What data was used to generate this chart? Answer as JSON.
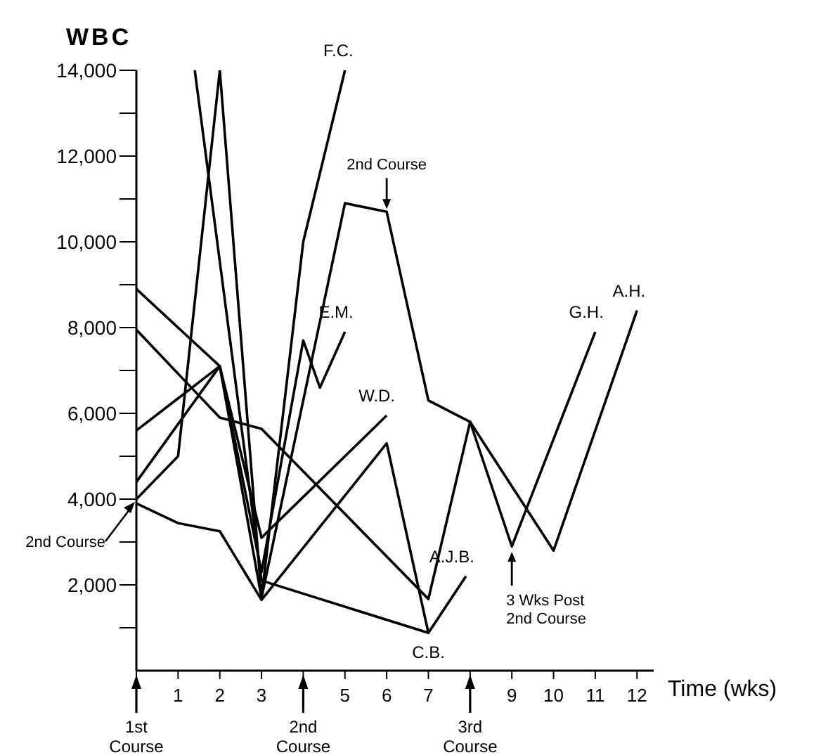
{
  "chart_data": {
    "type": "line",
    "ylabel": "WBC",
    "xlabel": "Time (wks)",
    "xlim": [
      0,
      12.4
    ],
    "xticks": [
      {
        "value": 0,
        "label": null
      },
      1,
      2,
      3,
      {
        "value": 4,
        "label": null
      },
      5,
      6,
      7,
      {
        "value": 8,
        "label": null
      },
      9,
      10,
      11,
      12
    ],
    "ylim": [
      0,
      14000
    ],
    "yticks": [
      {
        "value": 1000,
        "label": null
      },
      {
        "value": 2000,
        "label": "2,000"
      },
      {
        "value": 3000,
        "label": null
      },
      {
        "value": 4000,
        "label": "4,000"
      },
      {
        "value": 5000,
        "label": null
      },
      {
        "value": 6000,
        "label": "6,000"
      },
      {
        "value": 7000,
        "label": null
      },
      {
        "value": 8000,
        "label": "8,000"
      },
      {
        "value": 9000,
        "label": null
      },
      {
        "value": 10000,
        "label": "10,000"
      },
      {
        "value": 11000,
        "label": null
      },
      {
        "value": 12000,
        "label": "12,000"
      },
      {
        "value": 13000,
        "label": null
      },
      {
        "value": 14000,
        "label": "14,000"
      }
    ],
    "grid": false,
    "legend": false,
    "marker": "none",
    "line_style": "solid",
    "series": [
      {
        "name": "F.C.",
        "color": "#000000",
        "x": [
          0,
          1,
          2,
          3,
          4,
          5
        ],
        "values": [
          4000,
          5000,
          14000,
          1700,
          10000,
          14000
        ]
      },
      {
        "name": "G.H.",
        "color": "#000000",
        "x": [
          0,
          2,
          3,
          5,
          6,
          7,
          8,
          9,
          11
        ],
        "values": [
          8900,
          7100,
          1700,
          10900,
          10700,
          6300,
          5800,
          2900,
          7900
        ]
      },
      {
        "name": "A.H.",
        "color": "#000000",
        "x": [
          0,
          2,
          3,
          7,
          8,
          10,
          12
        ],
        "values": [
          7950,
          5900,
          5640,
          1670,
          5800,
          2800,
          8400
        ]
      },
      {
        "name": "C.B.",
        "color": "#000000",
        "x": [
          0,
          1,
          2,
          3,
          6,
          7
        ],
        "values": [
          3900,
          3440,
          3250,
          1650,
          5300,
          880
        ]
      },
      {
        "name": "W.D.",
        "color": "#000000",
        "x": [
          0,
          2,
          3,
          6
        ],
        "values": [
          5600,
          7100,
          3100,
          5950
        ]
      },
      {
        "name": "E.M.",
        "color": "#000000",
        "x": [
          0,
          2,
          3,
          4,
          4.4,
          5
        ],
        "values": [
          4400,
          7100,
          2300,
          7700,
          6600,
          7900
        ]
      },
      {
        "name": "A.J.B.",
        "color": "#000000",
        "x": [
          1.4,
          3,
          7,
          7.9
        ],
        "values": [
          14000,
          2100,
          880,
          2200
        ]
      }
    ],
    "annotations": [
      {
        "text": "2nd Course",
        "x": 0,
        "y": 4000
      },
      {
        "text": "2nd Course",
        "x": 6,
        "y": 10700
      },
      {
        "text": "3 Wks Post 2nd Course",
        "x": 9,
        "y": 2900
      },
      "1st Course",
      "2nd Course",
      "3rd Course"
    ]
  }
}
